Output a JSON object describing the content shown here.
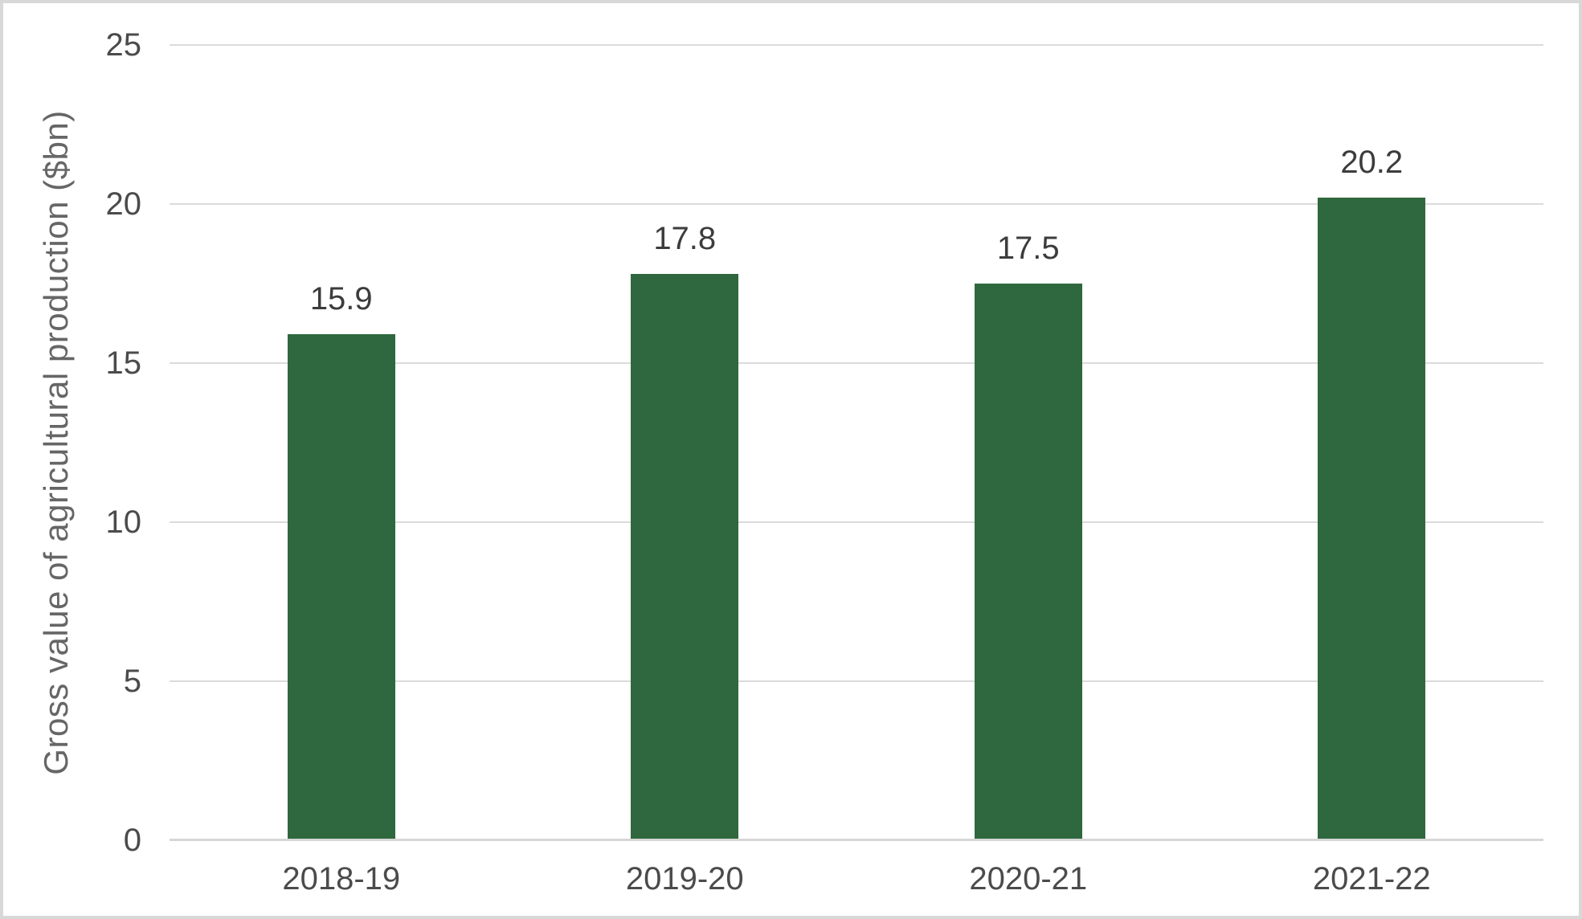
{
  "chart_data": {
    "type": "bar",
    "title": "",
    "categories": [
      "2018-19",
      "2019-20",
      "2020-21",
      "2021-22"
    ],
    "values": [
      15.9,
      17.8,
      17.5,
      20.2
    ],
    "data_labels": [
      "15.9",
      "17.8",
      "17.5",
      "20.2"
    ],
    "xlabel": "",
    "ylabel": "Gross value of agricultural production ($bn)",
    "ylim": [
      0,
      25
    ],
    "yticks": [
      0,
      5,
      10,
      15,
      20,
      25
    ],
    "ytick_labels": [
      "0",
      "5",
      "10",
      "15",
      "20",
      "25"
    ],
    "grid": true,
    "legend": "none",
    "bar_color": "#2f683e",
    "gridline_color": "#dbdbdb",
    "axis_line_color": "#d6d6d6",
    "value_label_color": "#3c3c3c",
    "tick_label_color": "#4b4b4b",
    "axis_title_color": "#666666",
    "frame_border_color": "#d8d8d8"
  }
}
